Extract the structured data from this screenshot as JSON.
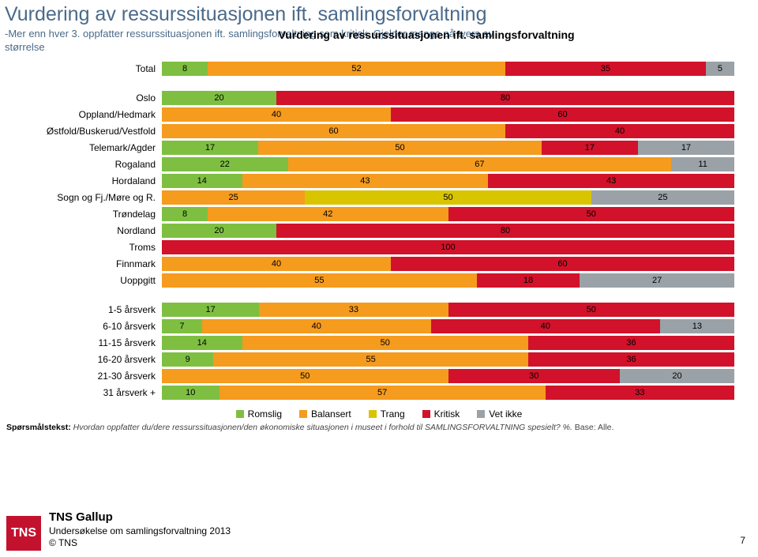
{
  "title": "Vurdering av ressurssituasjonen ift. samlingsforvaltning",
  "subtitle_line1": "-Mer enn hver 3. oppfatter ressurssituasjonen ift. samlingsforvaltning som kritisk. Gjelder mange på tvers av",
  "subtitle_line2": "størrelse",
  "chart_title": "Vurdering av ressurssituasjonen ift. samlingsforvaltning",
  "colors": {
    "romslig": "#7ebf42",
    "balansert": "#f59b1e",
    "trang": "#d9c400",
    "kritisk": "#d1122a",
    "vetikke": "#9aa2a8"
  },
  "legend": [
    "Romslig",
    "Balansert",
    "Trang",
    "Kritisk",
    "Vet ikke"
  ],
  "groups": [
    [
      {
        "label": "Total",
        "vals": [
          8,
          52,
          null,
          35,
          5
        ]
      }
    ],
    [
      {
        "label": "Oslo",
        "vals": [
          20,
          null,
          null,
          80,
          null
        ]
      },
      {
        "label": "Oppland/Hedmark",
        "vals": [
          null,
          40,
          null,
          60,
          null
        ]
      },
      {
        "label": "Østfold/Buskerud/Vestfold",
        "vals": [
          null,
          60,
          null,
          40,
          null
        ]
      },
      {
        "label": "Telemark/Agder",
        "vals": [
          17,
          50,
          null,
          17,
          17
        ]
      },
      {
        "label": "Rogaland",
        "vals": [
          22,
          67,
          null,
          null,
          11
        ]
      },
      {
        "label": "Hordaland",
        "vals": [
          14,
          43,
          null,
          43,
          null
        ]
      },
      {
        "label": "Sogn og Fj./Møre og R.",
        "vals": [
          null,
          25,
          50,
          null,
          25
        ]
      },
      {
        "label": "Trøndelag",
        "vals": [
          8,
          42,
          null,
          50,
          null
        ]
      },
      {
        "label": "Nordland",
        "vals": [
          20,
          null,
          null,
          80,
          null
        ]
      },
      {
        "label": "Troms",
        "vals": [
          null,
          null,
          null,
          100,
          null
        ]
      },
      {
        "label": "Finnmark",
        "vals": [
          null,
          40,
          null,
          60,
          null
        ]
      },
      {
        "label": "Uoppgitt",
        "vals": [
          null,
          55,
          null,
          18,
          27
        ]
      }
    ],
    [
      {
        "label": "1-5 årsverk",
        "vals": [
          17,
          33,
          null,
          50,
          null
        ]
      },
      {
        "label": "6-10 årsverk",
        "vals": [
          7,
          40,
          null,
          40,
          13
        ]
      },
      {
        "label": "11-15 årsverk",
        "vals": [
          14,
          50,
          null,
          36,
          null
        ]
      },
      {
        "label": "16-20 årsverk",
        "vals": [
          9,
          55,
          null,
          36,
          null
        ]
      },
      {
        "label": "21-30 årsverk",
        "vals": [
          0,
          50,
          null,
          30,
          20
        ]
      },
      {
        "label": "31 årsverk +",
        "vals": [
          10,
          57,
          null,
          33,
          null
        ]
      }
    ]
  ],
  "question_label": "Spørsmålstekst:",
  "question_text": "Hvordan oppfatter du/dere ressurssituasjonen/den økonomiske situasjonen i museet i forhold til SAMLINGSFORVALTNING spesielt? %.",
  "question_base": " Base: Alle.",
  "brand_name": "TNS Gallup",
  "survey_caption": "Undersøkelse om samlingsforvaltning 2013",
  "copyright": "© TNS",
  "tns_logo": "TNS",
  "page_number": "7"
}
